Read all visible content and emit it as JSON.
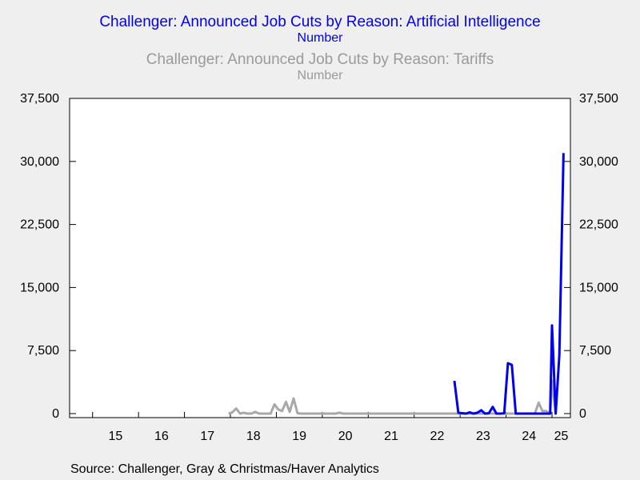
{
  "titles": {
    "series1_title": "Challenger: Announced Job Cuts by Reason: Artificial Intelligence",
    "series1_unit": "Number",
    "series2_title": "Challenger: Announced Job Cuts by Reason: Tariffs",
    "series2_unit": "Number"
  },
  "source": "Source:  Challenger, Gray & Christmas/Haver Analytics",
  "colors": {
    "ai": "#0000ee",
    "tariffs": "#a8a8a8",
    "background": "#efefef",
    "plot": "#ffffff"
  },
  "chart_data": {
    "type": "line",
    "title": "Challenger: Announced Job Cuts by Reason: Artificial Intelligence / Tariffs",
    "ylabel": "Number",
    "ylim": [
      0,
      37500
    ],
    "xlim": [
      2014.5,
      2025.4
    ],
    "yticks": [
      0,
      7500,
      15000,
      22500,
      30000,
      37500
    ],
    "ytick_labels": [
      "0",
      "7,500",
      "15,000",
      "22,500",
      "30,000",
      "37,500"
    ],
    "xtick_labels": [
      "15",
      "16",
      "17",
      "18",
      "19",
      "20",
      "21",
      "22",
      "23",
      "24",
      "25"
    ],
    "grid": false,
    "series": [
      {
        "name": "Artificial Intelligence",
        "color": "#0000ee",
        "axis": "left",
        "points": [
          [
            2022.875,
            3900
          ],
          [
            2022.96,
            100
          ],
          [
            2023.04,
            50
          ],
          [
            2023.125,
            0
          ],
          [
            2023.21,
            150
          ],
          [
            2023.29,
            0
          ],
          [
            2023.375,
            100
          ],
          [
            2023.46,
            400
          ],
          [
            2023.54,
            0
          ],
          [
            2023.625,
            50
          ],
          [
            2023.71,
            800
          ],
          [
            2023.79,
            0
          ],
          [
            2023.875,
            0
          ],
          [
            2023.96,
            50
          ],
          [
            2024.04,
            6000
          ],
          [
            2024.125,
            5800
          ],
          [
            2024.21,
            0
          ],
          [
            2024.29,
            0
          ],
          [
            2024.375,
            0
          ],
          [
            2024.46,
            0
          ],
          [
            2024.54,
            0
          ],
          [
            2024.625,
            0
          ],
          [
            2024.71,
            0
          ],
          [
            2024.79,
            0
          ],
          [
            2024.875,
            0
          ],
          [
            2024.96,
            0
          ],
          [
            2025.0,
            10500
          ],
          [
            2025.08,
            0
          ],
          [
            2025.16,
            7000
          ],
          [
            2025.25,
            31000
          ]
        ]
      },
      {
        "name": "Tariffs",
        "color": "#a8a8a8",
        "axis": "right",
        "points": [
          [
            2017.96,
            0
          ],
          [
            2018.04,
            150
          ],
          [
            2018.125,
            600
          ],
          [
            2018.21,
            0
          ],
          [
            2018.29,
            100
          ],
          [
            2018.375,
            0
          ],
          [
            2018.46,
            0
          ],
          [
            2018.54,
            200
          ],
          [
            2018.625,
            0
          ],
          [
            2018.71,
            0
          ],
          [
            2018.79,
            0
          ],
          [
            2018.875,
            0
          ],
          [
            2018.96,
            1100
          ],
          [
            2019.04,
            500
          ],
          [
            2019.125,
            300
          ],
          [
            2019.21,
            1400
          ],
          [
            2019.29,
            200
          ],
          [
            2019.375,
            1800
          ],
          [
            2019.46,
            50
          ],
          [
            2019.54,
            0
          ],
          [
            2019.625,
            0
          ],
          [
            2019.71,
            0
          ],
          [
            2019.79,
            0
          ],
          [
            2019.875,
            0
          ],
          [
            2019.96,
            0
          ],
          [
            2020.04,
            0
          ],
          [
            2020.125,
            0
          ],
          [
            2020.21,
            0
          ],
          [
            2020.29,
            0
          ],
          [
            2020.375,
            100
          ],
          [
            2020.46,
            0
          ],
          [
            2020.625,
            0
          ],
          [
            2020.875,
            0
          ],
          [
            2021.125,
            0
          ],
          [
            2021.375,
            0
          ],
          [
            2021.625,
            0
          ],
          [
            2021.875,
            0
          ],
          [
            2022.125,
            0
          ],
          [
            2022.375,
            0
          ],
          [
            2022.625,
            0
          ],
          [
            2022.875,
            0
          ],
          [
            2023.125,
            0
          ],
          [
            2023.375,
            0
          ],
          [
            2023.625,
            0
          ],
          [
            2023.875,
            0
          ],
          [
            2024.125,
            0
          ],
          [
            2024.375,
            0
          ],
          [
            2024.54,
            0
          ],
          [
            2024.625,
            0
          ],
          [
            2024.71,
            1300
          ],
          [
            2024.79,
            300
          ],
          [
            2024.875,
            300
          ],
          [
            2024.96,
            0
          ],
          [
            2025.0,
            3900
          ],
          [
            2025.08,
            0
          ]
        ]
      }
    ]
  }
}
